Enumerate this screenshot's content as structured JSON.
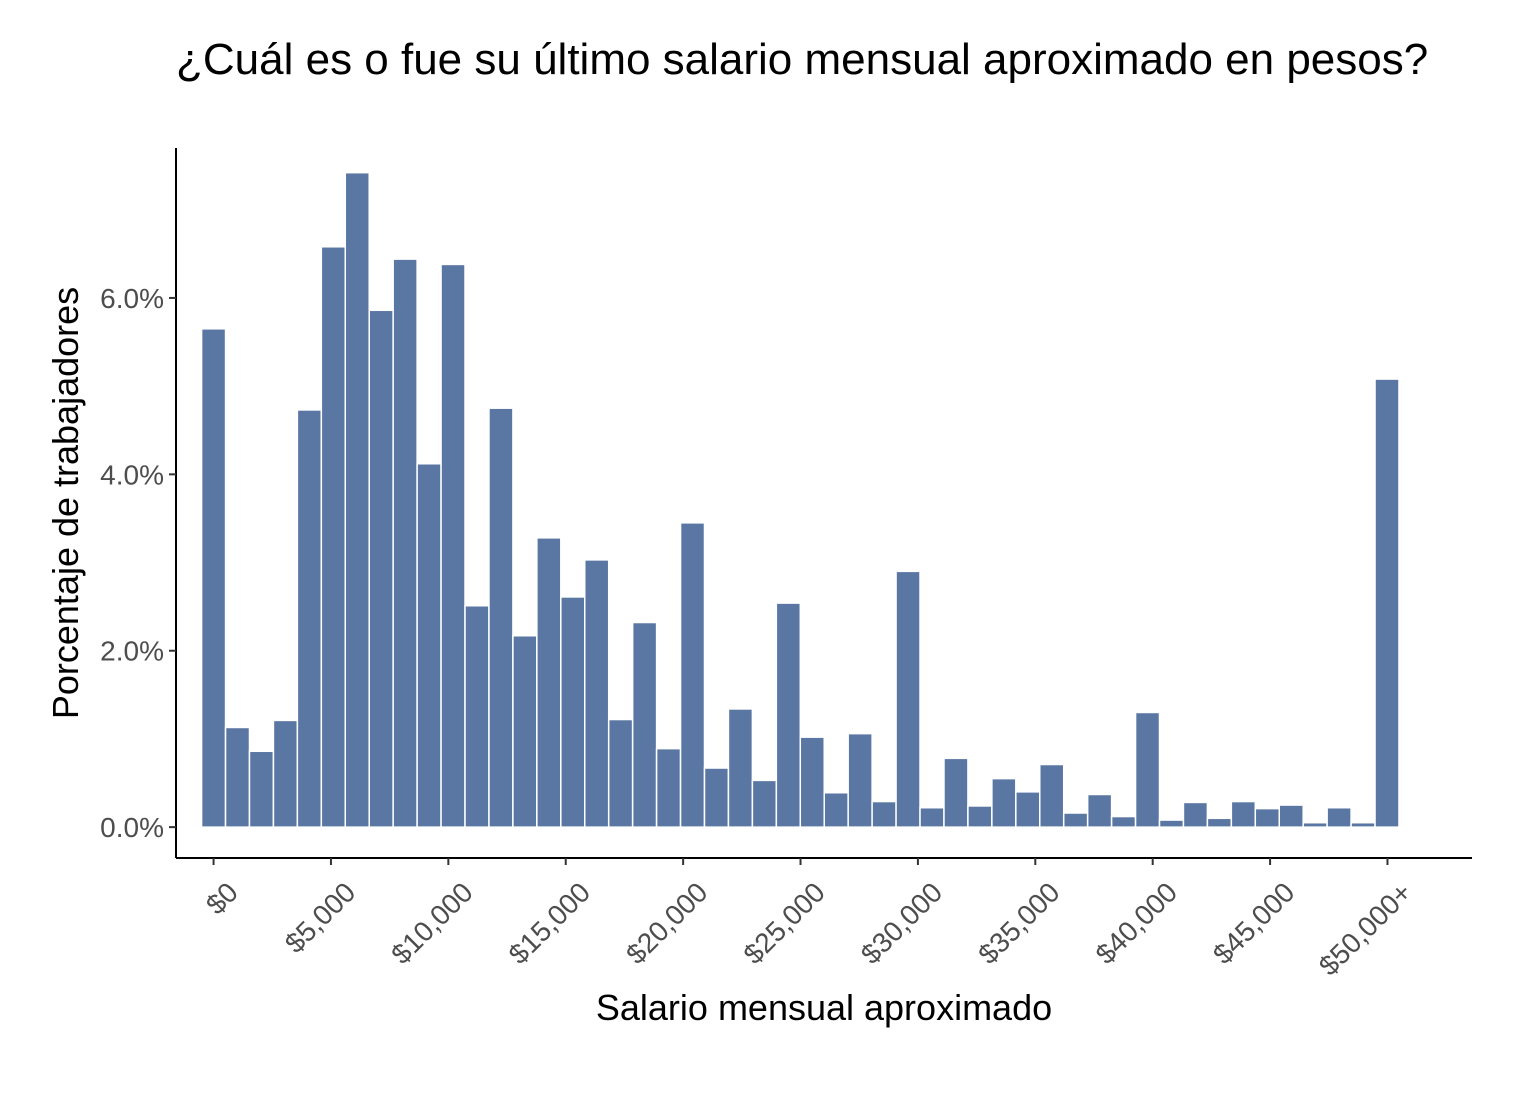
{
  "chart_data": {
    "type": "bar",
    "title": "¿Cuál es o fue su último salario mensual aproximado en pesos?",
    "xlabel": "Salario mensual aproximado",
    "ylabel": "Porcentaje de trabajadores",
    "x_tick_labels": [
      "$0",
      "$5,000",
      "$10,000",
      "$15,000",
      "$20,000",
      "$25,000",
      "$30,000",
      "$35,000",
      "$40,000",
      "$45,000",
      "$50,000+"
    ],
    "x_tick_values": [
      0,
      5000,
      10000,
      15000,
      20000,
      25000,
      30000,
      35000,
      40000,
      45000,
      50000
    ],
    "y_tick_labels": [
      "0.0%",
      "2.0%",
      "4.0%",
      "6.0%"
    ],
    "y_tick_values": [
      0,
      2,
      4,
      6
    ],
    "bin_width": 1020,
    "x": [
      0,
      1020,
      2040,
      3060,
      4080,
      5100,
      6120,
      7140,
      8160,
      9180,
      10200,
      11220,
      12240,
      13260,
      14280,
      15300,
      16320,
      17340,
      18360,
      19380,
      20400,
      21420,
      22440,
      23460,
      24480,
      25500,
      26520,
      27540,
      28560,
      29580,
      30600,
      31620,
      32640,
      33660,
      34680,
      35700,
      36720,
      37740,
      38760,
      39780,
      40800,
      41820,
      42840,
      43860,
      44880,
      45900,
      46920,
      47940,
      48960,
      49980
    ],
    "values": [
      5.65,
      1.13,
      0.86,
      1.21,
      4.73,
      6.58,
      7.42,
      5.86,
      6.44,
      4.12,
      6.38,
      2.51,
      4.75,
      2.17,
      3.28,
      2.61,
      3.03,
      1.22,
      2.32,
      0.89,
      3.45,
      0.67,
      1.34,
      0.53,
      2.54,
      1.02,
      0.39,
      1.06,
      0.29,
      2.9,
      0.22,
      0.78,
      0.24,
      0.55,
      0.4,
      0.71,
      0.16,
      0.37,
      0.12,
      1.3,
      0.08,
      0.28,
      0.1,
      0.29,
      0.21,
      0.25,
      0.05,
      0.22,
      0.05,
      5.08
    ],
    "ylim": [
      -0.35,
      7.7
    ],
    "bar_color": "#5a77a3",
    "grid": false
  }
}
